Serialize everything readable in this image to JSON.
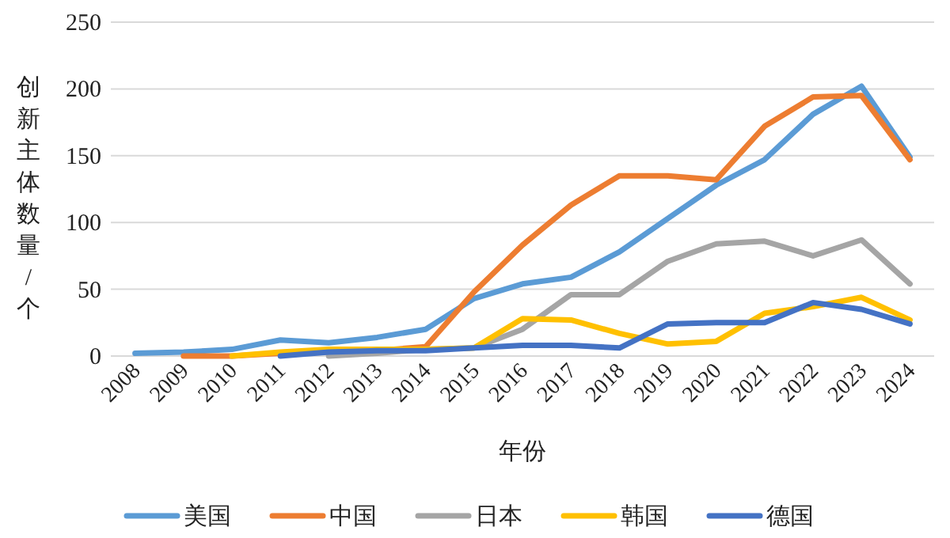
{
  "chart_data": {
    "type": "line",
    "xlabel": "年份",
    "ylabel": "创新主体数量/个",
    "categories": [
      "2008",
      "2009",
      "2010",
      "2011",
      "2012",
      "2013",
      "2014",
      "2015",
      "2016",
      "2017",
      "2018",
      "2019",
      "2020",
      "2021",
      "2022",
      "2023",
      "2024"
    ],
    "series": [
      {
        "name": "美国",
        "color": "#5b9bd5",
        "values": [
          2,
          3,
          5,
          12,
          10,
          14,
          20,
          43,
          54,
          59,
          78,
          103,
          128,
          147,
          181,
          202,
          149
        ]
      },
      {
        "name": "中国",
        "color": "#ed7d31",
        "values": [
          null,
          0,
          0,
          2,
          3,
          4,
          7,
          48,
          83,
          113,
          135,
          135,
          132,
          172,
          194,
          195,
          147
        ]
      },
      {
        "name": "日本",
        "color": "#a5a5a5",
        "values": [
          null,
          null,
          null,
          null,
          0,
          2,
          5,
          6,
          20,
          46,
          46,
          71,
          84,
          86,
          75,
          87,
          54
        ]
      },
      {
        "name": "韩国",
        "color": "#ffc000",
        "values": [
          null,
          null,
          0,
          3,
          5,
          5,
          5,
          6,
          28,
          27,
          17,
          9,
          11,
          32,
          37,
          44,
          27
        ]
      },
      {
        "name": "德国",
        "color": "#4472c4",
        "values": [
          null,
          null,
          null,
          0,
          3,
          4,
          4,
          6,
          8,
          8,
          6,
          24,
          25,
          25,
          40,
          35,
          24
        ]
      }
    ],
    "ylim": [
      0,
      250
    ],
    "yticks": [
      0,
      50,
      100,
      150,
      200,
      250
    ],
    "grid": "y",
    "legend": "bottom",
    "marker": "none"
  }
}
